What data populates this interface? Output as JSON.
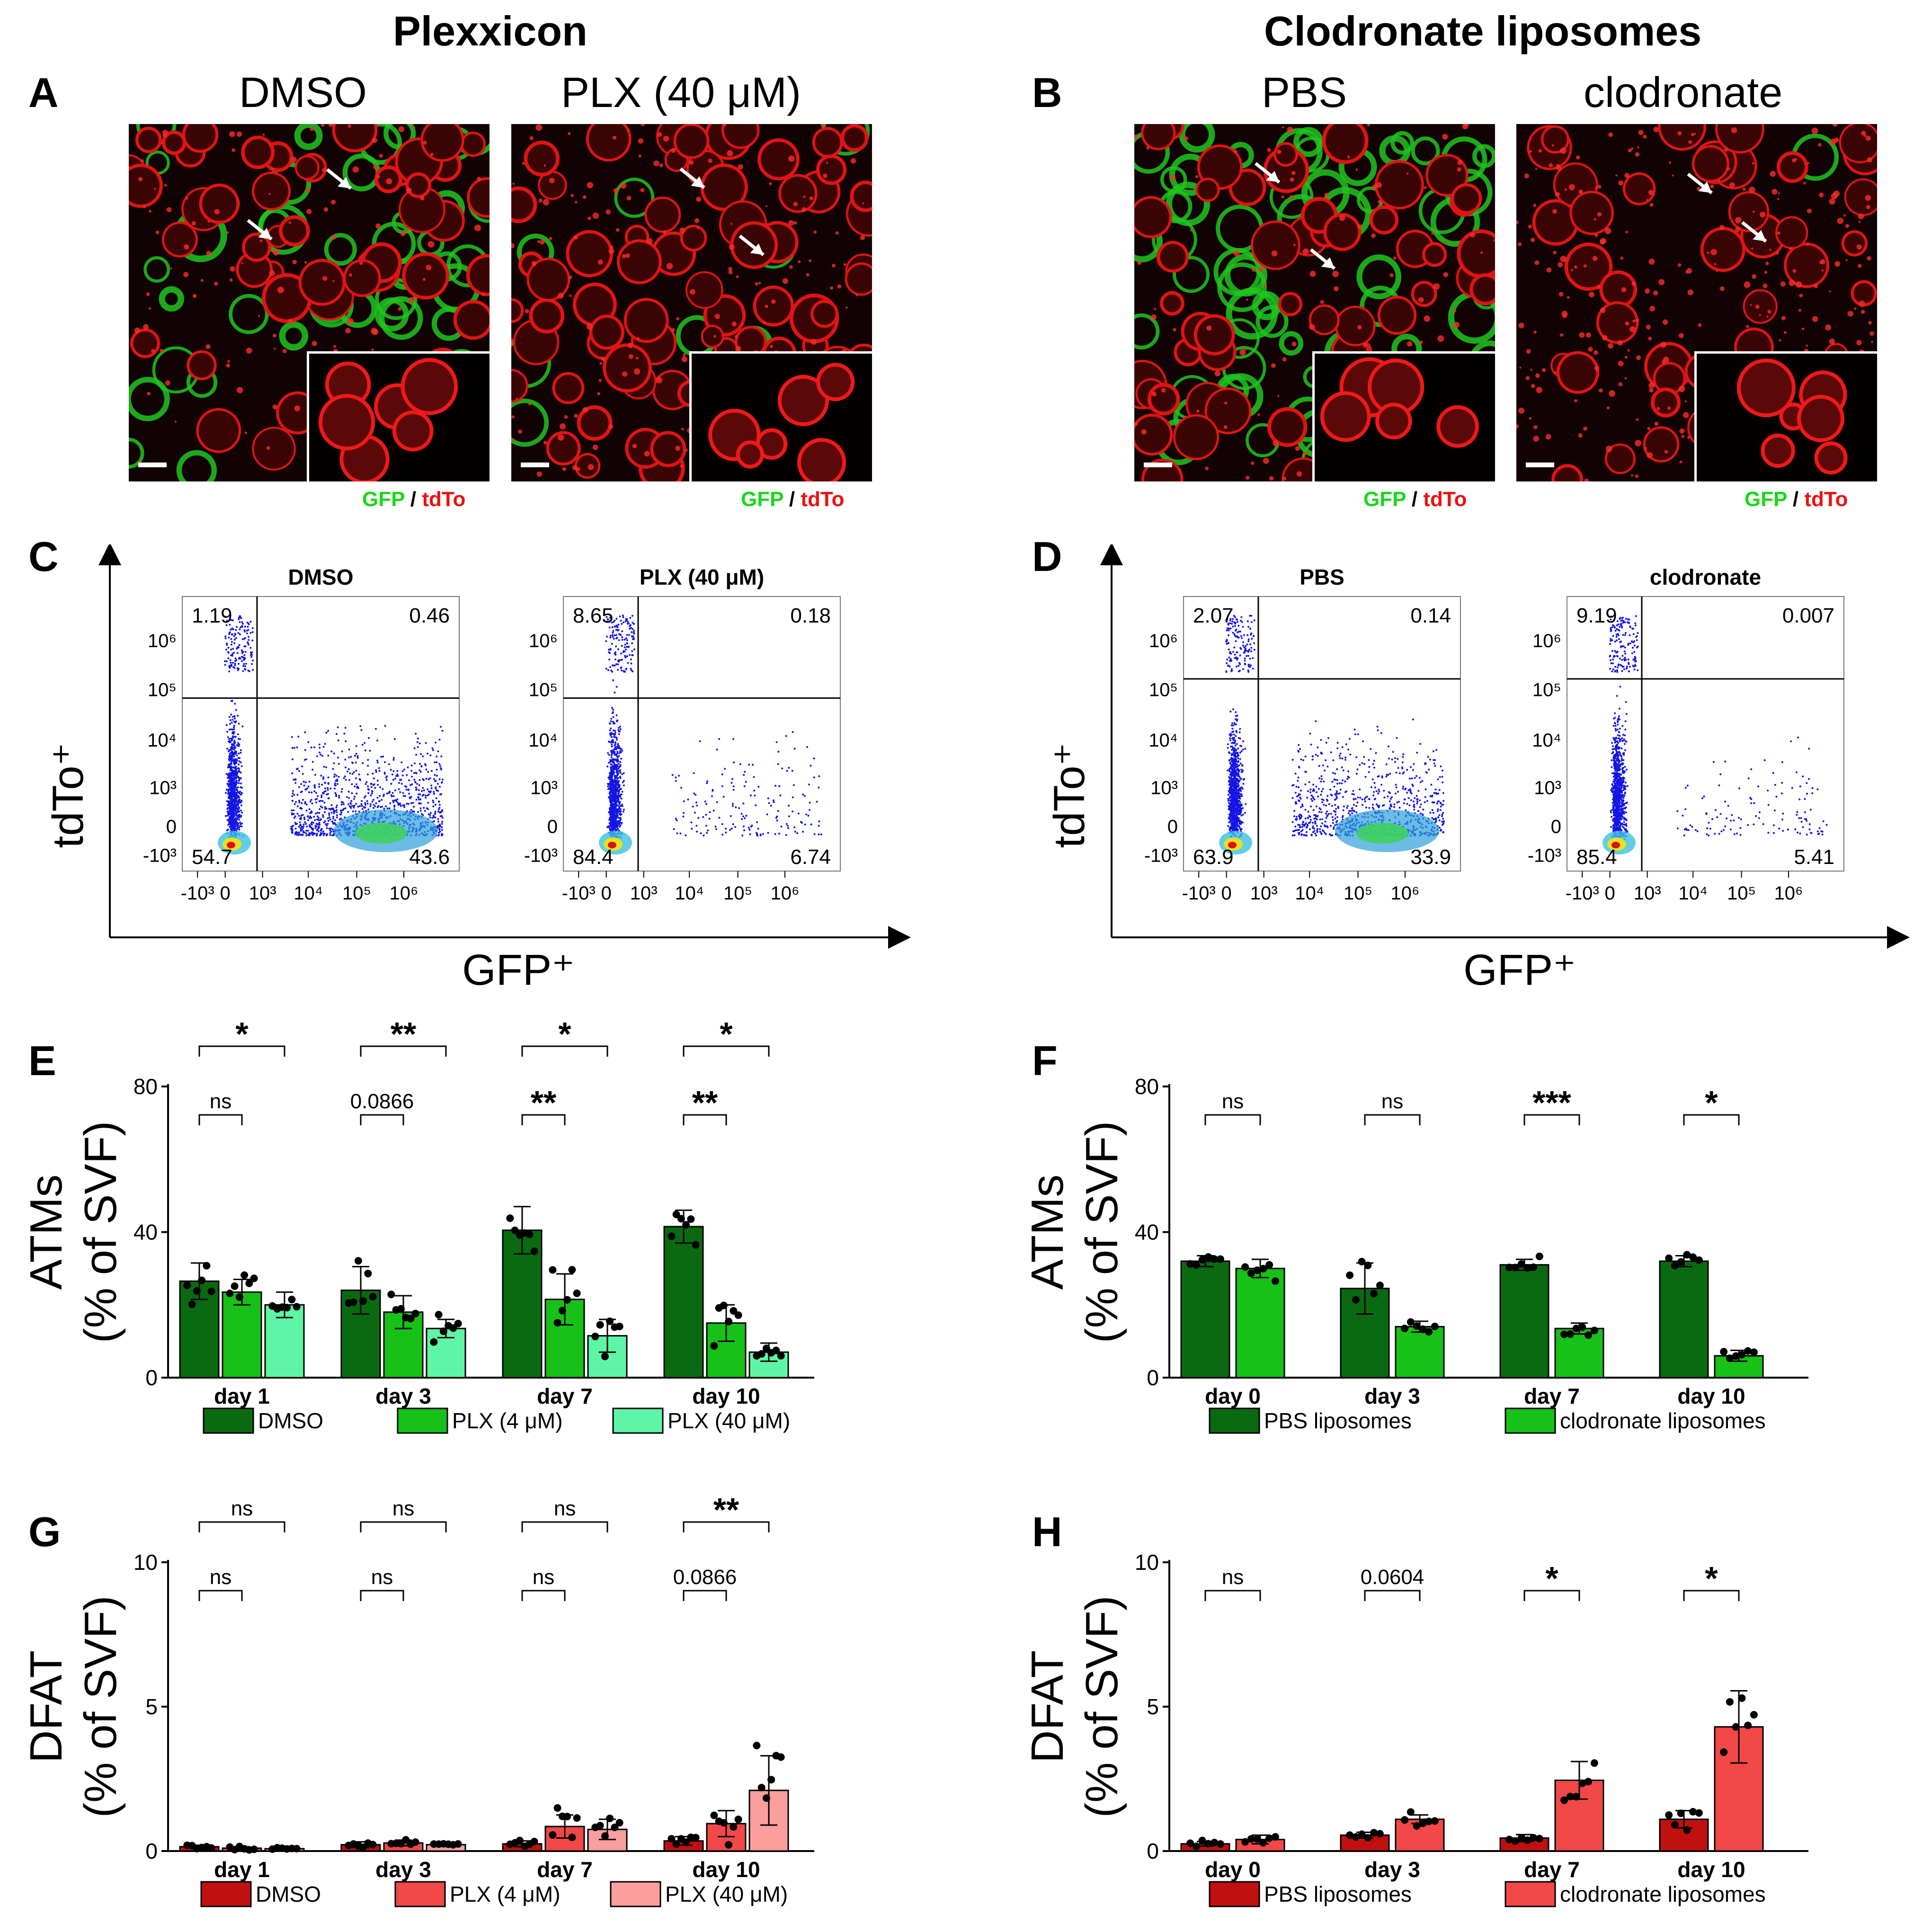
{
  "titles": {
    "left": "Plexxicon",
    "right": "Clodronate liposomes"
  },
  "letters": {
    "a": "A",
    "b": "B",
    "c": "C",
    "d": "D",
    "e": "E",
    "f": "F",
    "g": "G",
    "h": "H"
  },
  "images": [
    {
      "label": "DMSO",
      "scheme": "dmso"
    },
    {
      "label": "PLX (40 μM)",
      "scheme": "plx"
    },
    {
      "label": "PBS",
      "scheme": "pbs"
    },
    {
      "label": "clodronate",
      "scheme": "clod"
    }
  ],
  "stain": {
    "gfp": "GFP",
    "sep": " / ",
    "tdto": "tdTo"
  },
  "colors": {
    "gfp": "#18d818",
    "tdto": "#ee1010"
  },
  "flow": {
    "ylabel": "tdTo⁺",
    "xlabel": "GFP⁺",
    "ticks": [
      "-10³",
      "0",
      "10³",
      "10⁴",
      "10⁵",
      "10⁶"
    ],
    "plots": [
      {
        "title": "DMSO",
        "q": [
          "1.19",
          "0.46",
          "54.7",
          "43.6"
        ]
      },
      {
        "title": "PLX (40 μM)",
        "q": [
          "8.65",
          "0.18",
          "84.4",
          "6.74"
        ]
      },
      {
        "title": "PBS",
        "q": [
          "2.07",
          "0.14",
          "63.9",
          "33.9"
        ]
      },
      {
        "title": "clodronate",
        "q": [
          "9.19",
          "0.007",
          "85.4",
          "5.41"
        ]
      }
    ]
  },
  "chart_data": [
    {
      "id": "E",
      "type": "bar",
      "ylabel": "ATMs",
      "ylabel2": "(% of SVF)",
      "ylim": [
        0,
        80
      ],
      "yticks": [
        "0",
        "40",
        "80"
      ],
      "categories": [
        "day 1",
        "day 3",
        "day 7",
        "day 10"
      ],
      "series": [
        {
          "name": "DMSO",
          "color": "#0a6a12",
          "values": [
            26.5,
            24,
            40.5,
            41.5
          ],
          "sem": [
            5,
            6.5,
            6.5,
            4.5
          ]
        },
        {
          "name": "PLX (4 μM)",
          "color": "#17c117",
          "values": [
            23.5,
            18,
            21.5,
            15
          ],
          "sem": [
            3.5,
            4.5,
            7,
            5
          ]
        },
        {
          "name": "PLX (40 μM)",
          "color": "#5ef6a6",
          "values": [
            20,
            13.5,
            11.5,
            7
          ],
          "sem": [
            3.5,
            2.5,
            4.5,
            2.5
          ]
        }
      ],
      "sig": [
        {
          "group": 0,
          "from": 0,
          "to": 2,
          "label": "*"
        },
        {
          "group": 0,
          "from": 0,
          "to": 1,
          "label": "ns"
        },
        {
          "group": 1,
          "from": 0,
          "to": 2,
          "label": "**"
        },
        {
          "group": 1,
          "from": 0,
          "to": 1,
          "label": "0.0866"
        },
        {
          "group": 2,
          "from": 0,
          "to": 2,
          "label": "*"
        },
        {
          "group": 2,
          "from": 0,
          "to": 1,
          "label": "**"
        },
        {
          "group": 3,
          "from": 0,
          "to": 2,
          "label": "*"
        },
        {
          "group": 3,
          "from": 0,
          "to": 1,
          "label": "**"
        }
      ]
    },
    {
      "id": "F",
      "type": "bar",
      "ylabel": "ATMs",
      "ylabel2": "(% of SVF)",
      "ylim": [
        0,
        80
      ],
      "yticks": [
        "0",
        "40",
        "80"
      ],
      "categories": [
        "day 0",
        "day 3",
        "day 7",
        "day 10"
      ],
      "series": [
        {
          "name": "PBS liposomes",
          "color": "#0a6a12",
          "values": [
            32,
            24.5,
            31,
            32
          ],
          "sem": [
            1.5,
            7,
            1.5,
            1.5
          ]
        },
        {
          "name": "clodronate liposomes",
          "color": "#17c117",
          "values": [
            30,
            14,
            13.5,
            6
          ],
          "sem": [
            2.5,
            1.5,
            1.5,
            1.5
          ]
        }
      ],
      "sig": [
        {
          "group": 0,
          "from": 0,
          "to": 1,
          "label": "ns"
        },
        {
          "group": 1,
          "from": 0,
          "to": 1,
          "label": "ns"
        },
        {
          "group": 2,
          "from": 0,
          "to": 1,
          "label": "***"
        },
        {
          "group": 3,
          "from": 0,
          "to": 1,
          "label": "*"
        }
      ]
    },
    {
      "id": "G",
      "type": "bar",
      "ylabel": "DFAT",
      "ylabel2": "(% of SVF)",
      "ylim": [
        0,
        10
      ],
      "yticks": [
        "0",
        "5",
        "10"
      ],
      "categories": [
        "day 1",
        "day 3",
        "day 7",
        "day 10"
      ],
      "series": [
        {
          "name": "DMSO",
          "color": "#c11010",
          "values": [
            0.15,
            0.22,
            0.25,
            0.35
          ],
          "sem": [
            0.05,
            0.1,
            0.1,
            0.15
          ]
        },
        {
          "name": "PLX (4 μM)",
          "color": "#f24848",
          "values": [
            0.1,
            0.28,
            0.85,
            0.95
          ],
          "sem": [
            0.05,
            0.1,
            0.4,
            0.45
          ]
        },
        {
          "name": "PLX (40 μM)",
          "color": "#fa9e9e",
          "values": [
            0.08,
            0.22,
            0.75,
            2.1
          ],
          "sem": [
            0.03,
            0.05,
            0.35,
            1.2
          ]
        }
      ],
      "sig": [
        {
          "group": 0,
          "from": 0,
          "to": 2,
          "label": "ns"
        },
        {
          "group": 0,
          "from": 0,
          "to": 1,
          "label": "ns"
        },
        {
          "group": 1,
          "from": 0,
          "to": 2,
          "label": "ns"
        },
        {
          "group": 1,
          "from": 0,
          "to": 1,
          "label": "ns"
        },
        {
          "group": 2,
          "from": 0,
          "to": 2,
          "label": "ns"
        },
        {
          "group": 2,
          "from": 0,
          "to": 1,
          "label": "ns"
        },
        {
          "group": 3,
          "from": 0,
          "to": 2,
          "label": "**"
        },
        {
          "group": 3,
          "from": 0,
          "to": 1,
          "label": "0.0866"
        }
      ]
    },
    {
      "id": "H",
      "type": "bar",
      "ylabel": "DFAT",
      "ylabel2": "(% of SVF)",
      "ylim": [
        0,
        10
      ],
      "yticks": [
        "0",
        "5",
        "10"
      ],
      "categories": [
        "day 0",
        "day 3",
        "day 7",
        "day 10"
      ],
      "series": [
        {
          "name": "PBS liposomes",
          "color": "#c11010",
          "values": [
            0.25,
            0.55,
            0.45,
            1.1
          ],
          "sem": [
            0.08,
            0.1,
            0.12,
            0.3
          ]
        },
        {
          "name": "clodronate liposomes",
          "color": "#f24848",
          "values": [
            0.4,
            1.1,
            2.45,
            4.3
          ],
          "sem": [
            0.15,
            0.15,
            0.65,
            1.25
          ]
        }
      ],
      "sig": [
        {
          "group": 0,
          "from": 0,
          "to": 1,
          "label": "ns"
        },
        {
          "group": 1,
          "from": 0,
          "to": 1,
          "label": "0.0604"
        },
        {
          "group": 2,
          "from": 0,
          "to": 1,
          "label": "*"
        },
        {
          "group": 3,
          "from": 0,
          "to": 1,
          "label": "*"
        }
      ]
    }
  ]
}
